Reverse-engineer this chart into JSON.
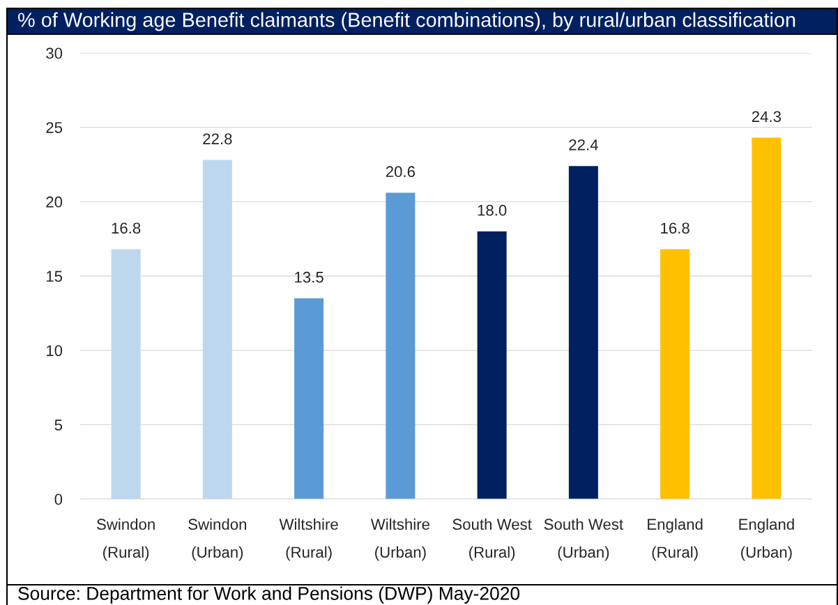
{
  "chart_data": {
    "type": "bar",
    "title": "% of Working age Benefit claimants (Benefit combinations), by rural/urban classification",
    "categories": [
      "Swindon\n(Rural)",
      "Swindon\n(Urban)",
      "Wiltshire\n(Rural)",
      "Wiltshire\n(Urban)",
      "South West\n(Rural)",
      "South West\n(Urban)",
      "England\n(Rural)",
      "England\n(Urban)"
    ],
    "values": [
      16.8,
      22.8,
      13.5,
      20.6,
      18.0,
      22.4,
      16.8,
      24.3
    ],
    "value_labels": [
      "16.8",
      "22.8",
      "13.5",
      "20.6",
      "18.0",
      "22.4",
      "16.8",
      "24.3"
    ],
    "colors": [
      "#bdd7ee",
      "#bdd7ee",
      "#5b9bd5",
      "#5b9bd5",
      "#002060",
      "#002060",
      "#ffc000",
      "#ffc000"
    ],
    "ylim": [
      0,
      30
    ],
    "yticks": [
      0,
      5,
      10,
      15,
      20,
      25,
      30
    ],
    "grid": "y",
    "annotations": [
      "Source: Department for Work and Pensions (DWP) May-2020"
    ]
  }
}
